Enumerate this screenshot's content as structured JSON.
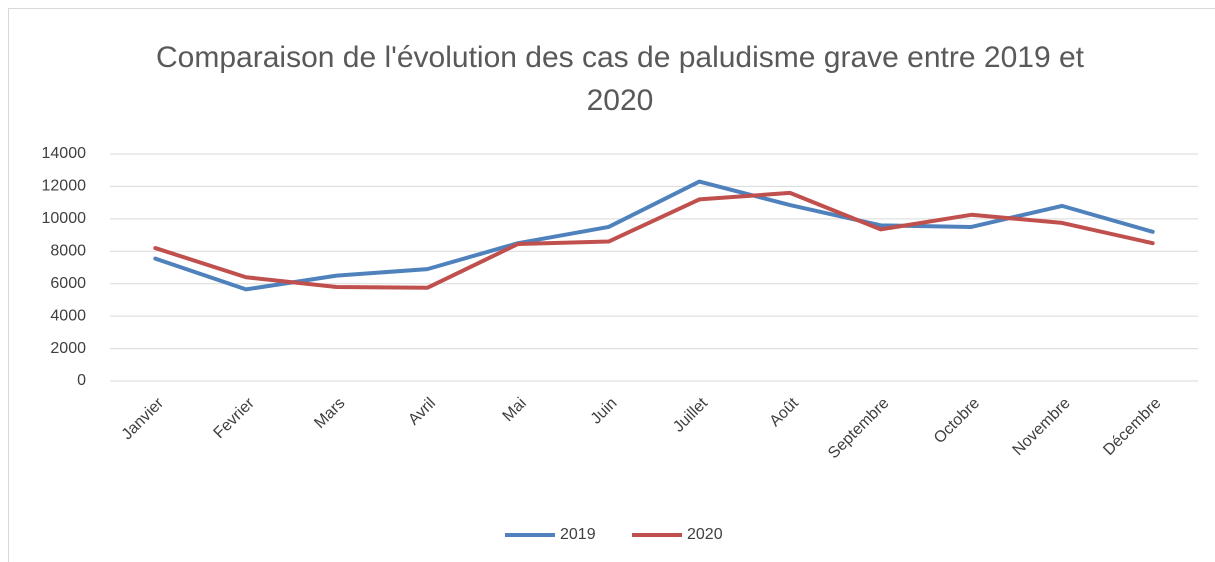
{
  "chart_data": {
    "type": "line",
    "title": "Comparaison de l'évolution des cas de paludisme grave entre 2019 et 2020",
    "categories": [
      "Janvier",
      "Fevrier",
      "Mars",
      "Avril",
      "Mai",
      "Juin",
      "Juillet",
      "Août",
      "Septembre",
      "Octobre",
      "Novembre",
      "Décembre"
    ],
    "series": [
      {
        "name": "2019",
        "color": "#4f81bd",
        "values": [
          7550,
          5650,
          6500,
          6900,
          8500,
          9500,
          12300,
          10850,
          9600,
          9500,
          10800,
          9200
        ]
      },
      {
        "name": "2020",
        "color": "#c0504d",
        "values": [
          8200,
          6400,
          5800,
          5750,
          8450,
          8600,
          11200,
          11600,
          9350,
          10250,
          9750,
          8500
        ]
      }
    ],
    "ylim": [
      0,
      14000
    ],
    "yticks": [
      0,
      2000,
      4000,
      6000,
      8000,
      10000,
      12000,
      14000
    ],
    "grid": true,
    "legend": "bottom"
  }
}
